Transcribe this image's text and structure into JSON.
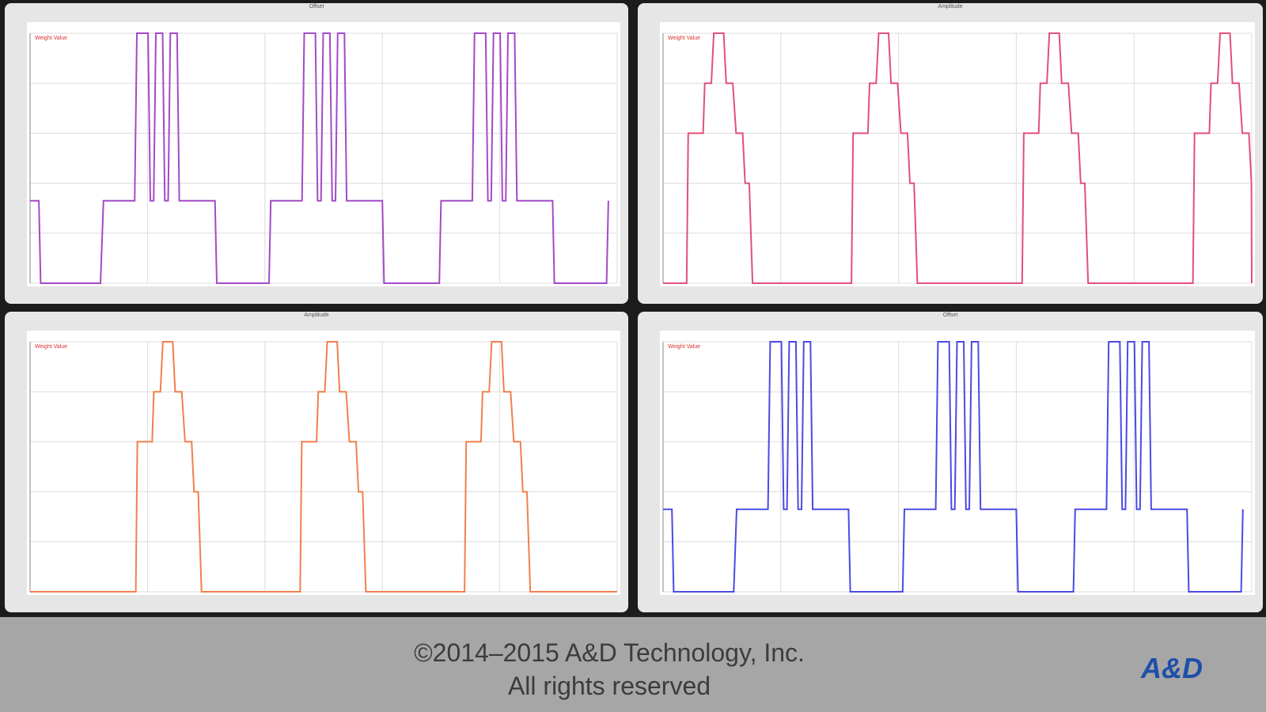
{
  "charts": [
    {
      "title": "Offset",
      "legend": "Weight Value",
      "color": "#a24ac7",
      "start": 1,
      "period": 210,
      "high": 0.33,
      "pattern": "offset"
    },
    {
      "title": "Amplitude",
      "legend": "Weight Value",
      "color": "#e0507a",
      "start": 1,
      "period": 210,
      "high": 0,
      "pattern": "amplitude"
    },
    {
      "title": "Amplitude",
      "legend": "Weight Value",
      "color": "#f27f4e",
      "start": 1,
      "period": 210,
      "high": 0,
      "pattern": "amplitude"
    },
    {
      "title": "Offset",
      "legend": "Weight Value",
      "color": "#4a4ae6",
      "start": 1,
      "period": 210,
      "high": 0.33,
      "pattern": "offset"
    }
  ],
  "footer": {
    "copyright_line1": "©2014–2015 A&D Technology, Inc.",
    "copyright_line2": "All rights reserved",
    "logo_text": "A&D",
    "logo_color": "#1f4fa8"
  }
}
